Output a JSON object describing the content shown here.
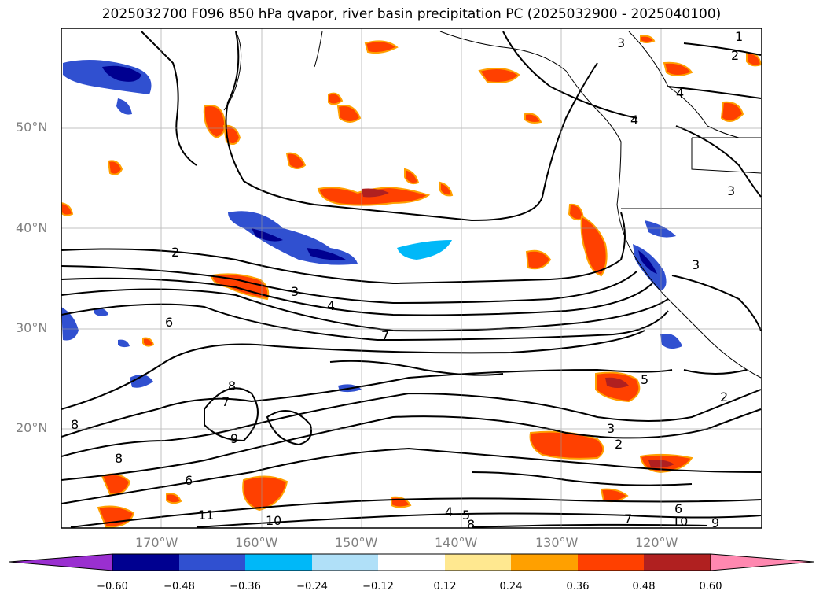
{
  "title": "2025032700 F096 850 hPa qvapor, river basin precipitation PC (2025032900 - 2025040100)",
  "map": {
    "lat_labels": [
      "50°N",
      "40°N",
      "30°N",
      "20°N"
    ],
    "lon_labels": [
      "170°W",
      "160°W",
      "150°W",
      "140°W",
      "130°W",
      "120°W"
    ],
    "contour_labels": [
      "1",
      "2",
      "3",
      "4",
      "5",
      "6",
      "7",
      "8",
      "9",
      "10",
      "11"
    ]
  },
  "colorbar": {
    "ticks": [
      "−0.60",
      "−0.48",
      "−0.36",
      "−0.24",
      "−0.12",
      "0.12",
      "0.24",
      "0.36",
      "0.48",
      "0.60"
    ],
    "colors": [
      "#9a2fd0",
      "#000090",
      "#3050d0",
      "#00b8f8",
      "#b0e0f8",
      "#ffffff",
      "#ffe890",
      "#ffa000",
      "#ff4000",
      "#b02020",
      "#ff88b0"
    ]
  }
}
